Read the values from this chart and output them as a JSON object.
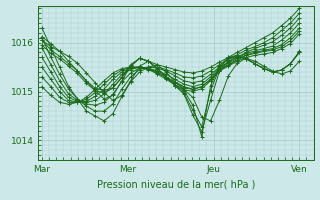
{
  "bg_color": "#cce8e8",
  "line_color": "#1a6b1a",
  "marker_color": "#1a6b1a",
  "grid_color": "#aacccc",
  "axis_label_color": "#1a6b1a",
  "tick_color": "#1a6b1a",
  "xlabel": "Pression niveau de la mer( hPa )",
  "yticks": [
    1014,
    1015,
    1016
  ],
  "xtick_labels": [
    "Mar",
    "Mer",
    "Jeu",
    "Ven"
  ],
  "xtick_positions": [
    0,
    48,
    96,
    144
  ],
  "xlim": [
    -2,
    152
  ],
  "ylim": [
    1013.6,
    1016.75
  ],
  "series": [
    [
      1016.3,
      1015.9,
      1015.5,
      1015.1,
      1014.85,
      1014.6,
      1014.5,
      1014.4,
      1014.55,
      1014.9,
      1015.2,
      1015.4,
      1015.5,
      1015.55,
      1015.5,
      1015.45,
      1015.4,
      1015.38,
      1015.42,
      1015.5,
      1015.6,
      1015.7,
      1015.8,
      1015.9,
      1016.0,
      1016.1,
      1016.2,
      1016.35,
      1016.5,
      1016.7
    ],
    [
      1016.1,
      1015.7,
      1015.35,
      1015.05,
      1014.85,
      1014.7,
      1014.6,
      1014.6,
      1014.75,
      1015.05,
      1015.3,
      1015.45,
      1015.5,
      1015.5,
      1015.45,
      1015.38,
      1015.3,
      1015.28,
      1015.32,
      1015.42,
      1015.55,
      1015.65,
      1015.75,
      1015.85,
      1015.92,
      1016.0,
      1016.1,
      1016.25,
      1016.4,
      1016.6
    ],
    [
      1015.9,
      1015.55,
      1015.22,
      1014.95,
      1014.82,
      1014.75,
      1014.72,
      1014.78,
      1014.95,
      1015.2,
      1015.38,
      1015.48,
      1015.5,
      1015.48,
      1015.42,
      1015.32,
      1015.22,
      1015.18,
      1015.22,
      1015.35,
      1015.5,
      1015.6,
      1015.7,
      1015.8,
      1015.88,
      1015.95,
      1016.02,
      1016.15,
      1016.3,
      1016.5
    ],
    [
      1015.7,
      1015.4,
      1015.1,
      1014.88,
      1014.8,
      1014.78,
      1014.82,
      1014.95,
      1015.15,
      1015.35,
      1015.45,
      1015.5,
      1015.48,
      1015.42,
      1015.35,
      1015.25,
      1015.15,
      1015.1,
      1015.15,
      1015.3,
      1015.48,
      1015.58,
      1015.68,
      1015.78,
      1015.83,
      1015.88,
      1015.93,
      1016.05,
      1016.2,
      1016.4
    ],
    [
      1015.5,
      1015.25,
      1015.0,
      1014.82,
      1014.78,
      1014.8,
      1014.9,
      1015.05,
      1015.25,
      1015.4,
      1015.48,
      1015.5,
      1015.47,
      1015.4,
      1015.3,
      1015.2,
      1015.1,
      1015.05,
      1015.1,
      1015.25,
      1015.45,
      1015.55,
      1015.65,
      1015.75,
      1015.8,
      1015.84,
      1015.88,
      1015.96,
      1016.1,
      1016.3
    ],
    [
      1015.3,
      1015.1,
      1014.88,
      1014.78,
      1014.78,
      1014.84,
      1014.98,
      1015.15,
      1015.32,
      1015.44,
      1015.5,
      1015.5,
      1015.46,
      1015.38,
      1015.28,
      1015.18,
      1015.08,
      1015.04,
      1015.1,
      1015.25,
      1015.44,
      1015.54,
      1015.64,
      1015.74,
      1015.78,
      1015.82,
      1015.85,
      1015.92,
      1016.04,
      1016.24
    ],
    [
      1015.1,
      1014.92,
      1014.78,
      1014.74,
      1014.78,
      1014.88,
      1015.05,
      1015.22,
      1015.38,
      1015.47,
      1015.5,
      1015.5,
      1015.45,
      1015.36,
      1015.25,
      1015.14,
      1015.04,
      1015.0,
      1015.06,
      1015.22,
      1015.42,
      1015.52,
      1015.62,
      1015.7,
      1015.74,
      1015.77,
      1015.8,
      1015.88,
      1015.98,
      1016.18
    ],
    [
      1016.05,
      1015.92,
      1015.82,
      1015.72,
      1015.58,
      1015.38,
      1015.18,
      1014.98,
      1014.82,
      1014.92,
      1015.22,
      1015.52,
      1015.62,
      1015.55,
      1015.4,
      1015.2,
      1015.04,
      1014.88,
      1014.48,
      1014.4,
      1014.82,
      1015.32,
      1015.58,
      1015.68,
      1015.62,
      1015.52,
      1015.42,
      1015.36,
      1015.42,
      1015.62
    ],
    [
      1016.12,
      1015.98,
      1015.82,
      1015.62,
      1015.42,
      1015.22,
      1015.02,
      1014.85,
      1014.92,
      1015.22,
      1015.52,
      1015.68,
      1015.62,
      1015.47,
      1015.3,
      1015.12,
      1014.95,
      1014.52,
      1014.18,
      1014.82,
      1015.42,
      1015.62,
      1015.72,
      1015.67,
      1015.57,
      1015.47,
      1015.4,
      1015.44,
      1015.57,
      1015.82
    ],
    [
      1016.05,
      1015.85,
      1015.72,
      1015.57,
      1015.42,
      1015.22,
      1015.07,
      1015.02,
      1015.08,
      1015.28,
      1015.52,
      1015.68,
      1015.62,
      1015.47,
      1015.3,
      1015.12,
      1014.97,
      1014.62,
      1014.28,
      1015.02,
      1015.48,
      1015.68,
      1015.72,
      1015.67,
      1015.57,
      1015.47,
      1015.4,
      1015.44,
      1015.57,
      1015.8
    ],
    [
      1015.95,
      1015.78,
      1015.67,
      1015.52,
      1015.37,
      1015.17,
      1015.02,
      1014.97,
      1015.07,
      1015.3,
      1015.55,
      1015.68,
      1015.62,
      1015.47,
      1015.3,
      1015.12,
      1015.02,
      1014.72,
      1014.08,
      1015.12,
      1015.52,
      1015.7,
      1015.74,
      1015.67,
      1015.57,
      1015.47,
      1015.4,
      1015.44,
      1015.57,
      1015.8
    ]
  ]
}
